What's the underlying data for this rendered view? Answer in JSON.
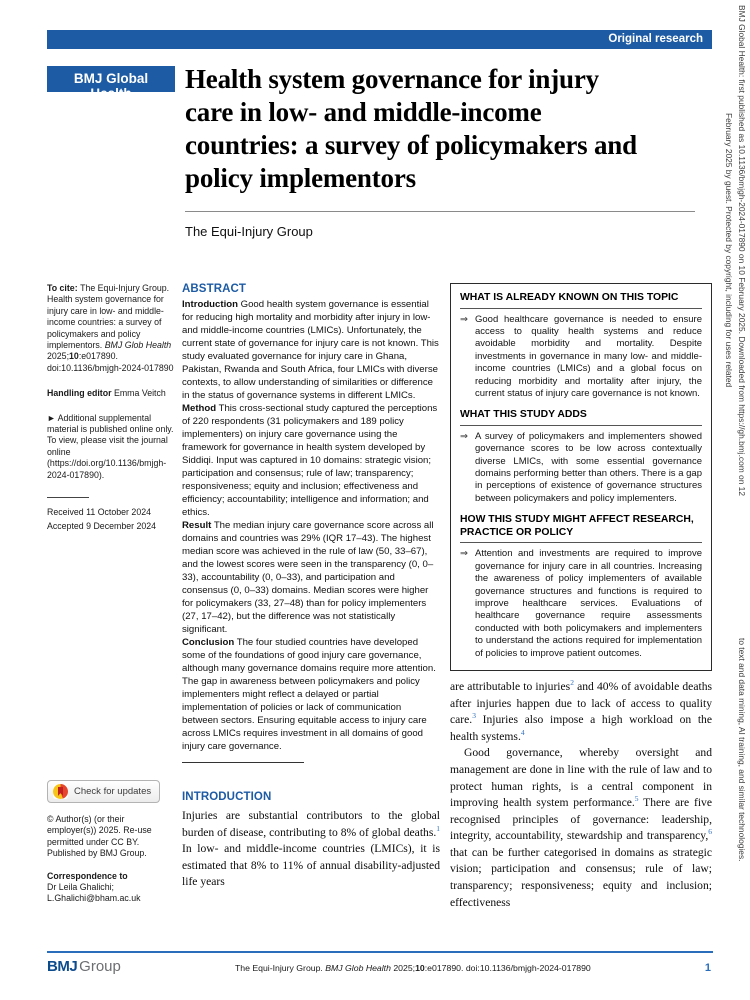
{
  "journal": {
    "banner": "Original research",
    "logo": "BMJ Global Health",
    "side_text_line1": "BMJ Global Health: first published as 10.1136/bmjgh-2024-017890 on 10 February 2025. Downloaded from https://gh.bmj.com on 12 February 2025 by guest. Protected by copyright, including for uses related",
    "side_text_line2": "to text and data mining, AI training, and similar technologies.",
    "footer_brand_bmj": "BMJ",
    "footer_brand_group": "Group",
    "footer_citation": {
      "part1": "The Equi-Injury Group. ",
      "journal_italic": "BMJ Glob Health",
      "part2": " 2025;",
      "volume": "10",
      "part3": ":e017890. doi:10.1136/bmjgh-2024-017890"
    },
    "page_number": "1"
  },
  "header": {
    "title_lines": [
      "Health system governance for injury",
      "care in low- and middle-income",
      "countries: a survey of policymakers and",
      "policy implementors"
    ],
    "authors": "The Equi-Injury Group"
  },
  "sidebar": {
    "to_cite": {
      "label": "To cite: ",
      "text1": "The Equi-Injury Group. Health system governance for injury care in low- and middle-income countries: a survey of policymakers and policy implementors. ",
      "journal_italic": "BMJ Glob Health",
      "text2": " 2025;",
      "volume": "10",
      "text3": ":e017890. doi:10.1136/bmjgh-2024-017890"
    },
    "handling_editor_label": "Handling editor ",
    "handling_editor_name": "Emma Veitch",
    "supplemental_arrow": "►",
    "supplemental": " Additional supplemental material is published online only. To view, please visit the journal online (https://doi.org/10.1136/bmjgh-2024-017890).",
    "received": "Received 11 October 2024",
    "accepted": "Accepted 9 December 2024",
    "check_updates_label": "Check for updates",
    "copyright": "© Author(s) (or their employer(s)) 2025. Re-use permitted under CC BY. Published by BMJ Group.",
    "correspondence_label": "Correspondence to",
    "correspondence_text": "Dr Leila Ghalichi; L.Ghalichi@bham.ac.uk"
  },
  "abstract": {
    "heading": "ABSTRACT",
    "sections": [
      {
        "label": "Introduction",
        "text": "  Good health system governance is essential for reducing high mortality and morbidity after injury in low- and middle-income countries (LMICs). Unfortunately, the current state of governance for injury care is not known. This study evaluated governance for injury care in Ghana, Pakistan, Rwanda and South Africa, four LMICs with diverse contexts, to allow understanding of similarities or difference in the status of governance systems in different LMICs."
      },
      {
        "label": "Method",
        "text": "  This cross-sectional study captured the perceptions of 220 respondents (31 policymakers and 189 policy implementers) on injury care governance using the framework for governance in health system developed by Siddiqi. Input was captured in 10 domains: strategic vision; participation and consensus; rule of law; transparency; responsiveness; equity and inclusion; effectiveness and efficiency; accountability; intelligence and information; and ethics."
      },
      {
        "label": "Result",
        "text": "  The median injury care governance score across all domains and countries was 29% (IQR 17–43). The highest median score was achieved in the rule of law (50, 33–67), and the lowest scores were seen in the transparency (0, 0–33), accountability (0, 0–33), and participation and consensus (0, 0–33) domains. Median scores were higher for policymakers (33, 27–48) than for policy implementers (27, 17–42), but the difference was not statistically significant."
      },
      {
        "label": "Conclusion",
        "text": "  The four studied countries have developed some of the foundations of good injury care governance, although many governance domains require more attention. The gap in awareness between policymakers and policy implementers might reflect a delayed or partial implementation of policies or lack of communication between sectors. Ensuring equitable access to injury care across LMICs requires investment in all domains of good injury care governance."
      }
    ]
  },
  "summary_box": {
    "topics": [
      {
        "heading": "WHAT IS ALREADY KNOWN ON THIS TOPIC",
        "arrow": "⇒",
        "bullet": "Good healthcare governance is needed to ensure access to quality health systems and reduce avoidable morbidity and mortality. Despite investments in governance in many low- and middle-income countries (LMICs) and a global focus on reducing morbidity and mortality after injury, the current status of injury care governance is not known."
      },
      {
        "heading": "WHAT THIS STUDY ADDS",
        "arrow": "⇒",
        "bullet": "A survey of policymakers and implementers showed governance scores to be low across contextually diverse LMICs, with some essential governance domains performing better than others. There is a gap in perceptions of existence of governance structures between policymakers and policy implementers."
      },
      {
        "heading": "HOW THIS STUDY MIGHT AFFECT RESEARCH, PRACTICE OR POLICY",
        "arrow": "⇒",
        "bullet": "Attention and investments are required to improve governance for injury care in all countries. Increasing the awareness of policy implementers of available governance structures and functions is required to improve healthcare services. Evaluations of healthcare governance require assessments conducted with both policymakers and implementers to understand the actions required for implementation of policies to improve patient outcomes."
      }
    ]
  },
  "introduction": {
    "heading": "INTRODUCTION",
    "p1a": "Injuries are substantial contributors to the global burden of disease, contributing to 8% of global deaths.",
    "ref1": "1",
    "p1b": " In low- and middle-income countries (LMICs), it is estimated that 8% to 11% of annual disability-adjusted life years"
  },
  "right_column": {
    "p1a": "are attributable to injuries",
    "ref2": "2",
    "p1b": " and 40% of avoidable deaths after injuries happen due to lack of access to quality care.",
    "ref3": "3",
    "p1c": " Injuries also impose a high workload on the health systems.",
    "ref4": "4",
    "p2a": "Good governance, whereby oversight and management are done in line with the rule of law and to protect human rights, is a central component in improving health system performance.",
    "ref5": "5",
    "p2b": " There are five recognised principles of governance: leadership, integrity, accountability, stewardship and transparency,",
    "ref6": "6",
    "p2c": " that can be further categorised in domains as strategic vision; participation and consensus; rule of law; transparency; responsiveness; equity and inclusion; effectiveness"
  }
}
